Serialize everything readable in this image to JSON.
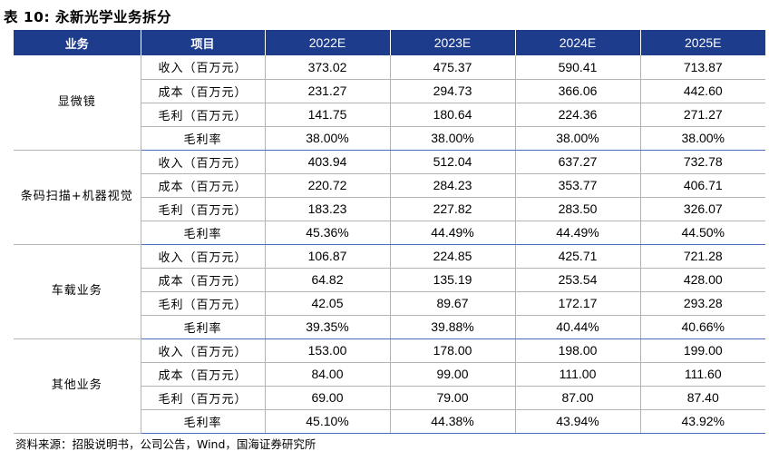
{
  "title": "表 10:  永新光学业务拆分",
  "table": {
    "headers": [
      "业务",
      "项目",
      "2022E",
      "2023E",
      "2024E",
      "2025E"
    ],
    "groups": [
      {
        "name": "显微镜",
        "rows": [
          {
            "item": "收入（百万元）",
            "values": [
              "373.02",
              "475.37",
              "590.41",
              "713.87"
            ]
          },
          {
            "item": "成本（百万元）",
            "values": [
              "231.27",
              "294.73",
              "366.06",
              "442.60"
            ]
          },
          {
            "item": "毛利（百万元）",
            "values": [
              "141.75",
              "180.64",
              "224.36",
              "271.27"
            ]
          },
          {
            "item": "毛利率",
            "values": [
              "38.00%",
              "38.00%",
              "38.00%",
              "38.00%"
            ]
          }
        ]
      },
      {
        "name": "条码扫描+机器视觉",
        "rows": [
          {
            "item": "收入（百万元）",
            "values": [
              "403.94",
              "512.04",
              "637.27",
              "732.78"
            ]
          },
          {
            "item": "成本（百万元）",
            "values": [
              "220.72",
              "284.23",
              "353.77",
              "406.71"
            ]
          },
          {
            "item": "毛利（百万元）",
            "values": [
              "183.23",
              "227.82",
              "283.50",
              "326.07"
            ]
          },
          {
            "item": "毛利率",
            "values": [
              "45.36%",
              "44.49%",
              "44.49%",
              "44.50%"
            ]
          }
        ]
      },
      {
        "name": "车载业务",
        "rows": [
          {
            "item": "收入（百万元）",
            "values": [
              "106.87",
              "224.85",
              "425.71",
              "721.28"
            ]
          },
          {
            "item": "成本（百万元）",
            "values": [
              "64.82",
              "135.19",
              "253.54",
              "428.00"
            ]
          },
          {
            "item": "毛利（百万元）",
            "values": [
              "42.05",
              "89.67",
              "172.17",
              "293.28"
            ]
          },
          {
            "item": "毛利率",
            "values": [
              "39.35%",
              "39.88%",
              "40.44%",
              "40.66%"
            ]
          }
        ]
      },
      {
        "name": "其他业务",
        "rows": [
          {
            "item": "收入（百万元）",
            "values": [
              "153.00",
              "178.00",
              "198.00",
              "199.00"
            ]
          },
          {
            "item": "成本（百万元）",
            "values": [
              "84.00",
              "99.00",
              "111.00",
              "111.60"
            ]
          },
          {
            "item": "毛利（百万元）",
            "values": [
              "69.00",
              "79.00",
              "87.00",
              "87.40"
            ]
          },
          {
            "item": "毛利率",
            "values": [
              "45.10%",
              "44.38%",
              "43.94%",
              "43.92%"
            ]
          }
        ]
      }
    ]
  },
  "source": "资料来源：招股说明书，公司公告，Wind，国海证券研究所"
}
